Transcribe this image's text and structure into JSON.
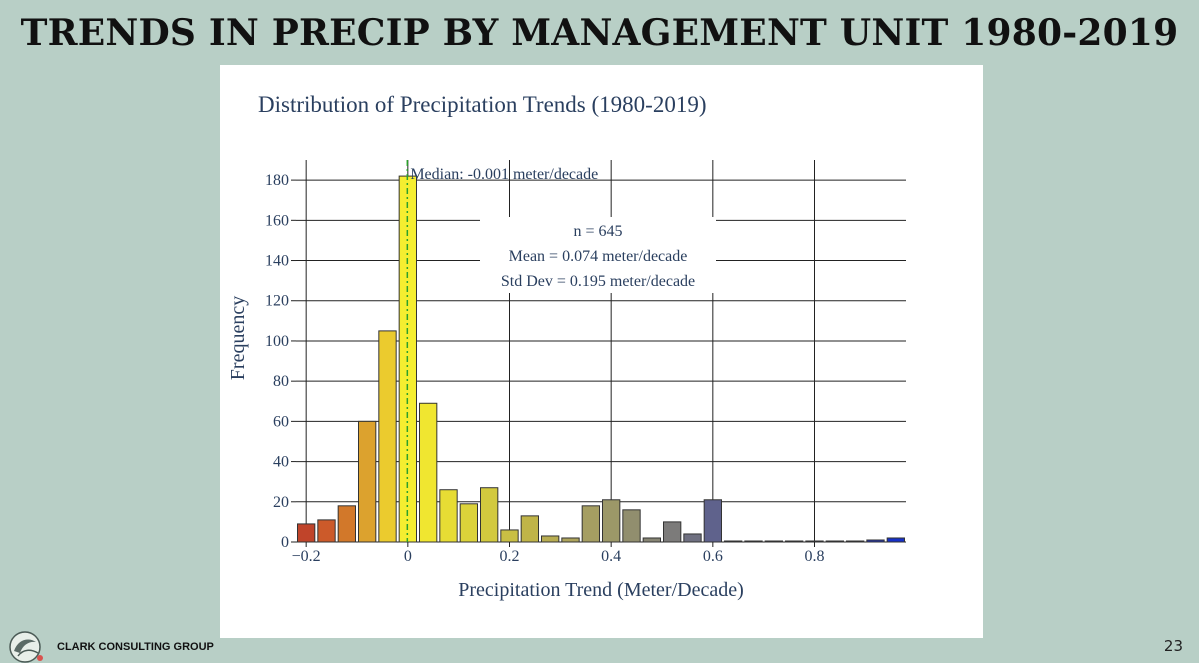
{
  "slide": {
    "title": "TRENDS IN PRECIP BY MANAGEMENT UNIT 1980-2019",
    "company": "CLARK CONSULTING GROUP",
    "page_number": "23"
  },
  "chart_data": {
    "type": "bar",
    "title": "Distribution of Precipitation Trends (1980-2019)",
    "xlabel": "Precipitation Trend (Meter/Decade)",
    "ylabel": "Frequency",
    "xlim": [
      -0.22,
      0.98
    ],
    "ylim": [
      0,
      190
    ],
    "bin_width": 0.04,
    "x_ticks": [
      -0.2,
      0,
      0.2,
      0.4,
      0.6,
      0.8
    ],
    "x_tick_labels": [
      "−0.2",
      "0",
      "0.2",
      "0.4",
      "0.6",
      "0.8"
    ],
    "y_ticks": [
      0,
      20,
      40,
      60,
      80,
      100,
      120,
      140,
      160,
      180
    ],
    "grid": true,
    "bins": [
      {
        "x": -0.2,
        "value": 9,
        "color": "#c0442a"
      },
      {
        "x": -0.16,
        "value": 11,
        "color": "#cc5a2a"
      },
      {
        "x": -0.12,
        "value": 18,
        "color": "#d2782a"
      },
      {
        "x": -0.08,
        "value": 60,
        "color": "#dca22e"
      },
      {
        "x": -0.04,
        "value": 105,
        "color": "#ebcb2e"
      },
      {
        "x": 0.0,
        "value": 182,
        "color": "#f5ee30"
      },
      {
        "x": 0.04,
        "value": 69,
        "color": "#f0e630"
      },
      {
        "x": 0.08,
        "value": 26,
        "color": "#e7dc34"
      },
      {
        "x": 0.12,
        "value": 19,
        "color": "#dcd33a"
      },
      {
        "x": 0.16,
        "value": 27,
        "color": "#d2c93e"
      },
      {
        "x": 0.2,
        "value": 6,
        "color": "#c9bf44"
      },
      {
        "x": 0.24,
        "value": 13,
        "color": "#c0b448"
      },
      {
        "x": 0.28,
        "value": 3,
        "color": "#b8ad52"
      },
      {
        "x": 0.32,
        "value": 2,
        "color": "#aea45c"
      },
      {
        "x": 0.36,
        "value": 18,
        "color": "#a59e62"
      },
      {
        "x": 0.4,
        "value": 21,
        "color": "#9c9868"
      },
      {
        "x": 0.44,
        "value": 16,
        "color": "#918e6e"
      },
      {
        "x": 0.48,
        "value": 2,
        "color": "#878574"
      },
      {
        "x": 0.52,
        "value": 10,
        "color": "#7c7b7a"
      },
      {
        "x": 0.56,
        "value": 4,
        "color": "#6f7081"
      },
      {
        "x": 0.6,
        "value": 21,
        "color": "#5f628c"
      },
      {
        "x": 0.64,
        "value": 0.5,
        "color": "#555a90"
      },
      {
        "x": 0.68,
        "value": 0.5,
        "color": "#4f5592"
      },
      {
        "x": 0.72,
        "value": 0.5,
        "color": "#484f96"
      },
      {
        "x": 0.76,
        "value": 0.5,
        "color": "#42499a"
      },
      {
        "x": 0.8,
        "value": 0.5,
        "color": "#3b429e"
      },
      {
        "x": 0.84,
        "value": 0.5,
        "color": "#343ca2"
      },
      {
        "x": 0.88,
        "value": 0.5,
        "color": "#2d36a8"
      },
      {
        "x": 0.92,
        "value": 1,
        "color": "#2233b0"
      },
      {
        "x": 0.96,
        "value": 2,
        "color": "#1630c8"
      }
    ],
    "median": {
      "value": -0.001,
      "label": "Median: -0.001 meter/decade",
      "color": "#2ca02c"
    },
    "stats": {
      "n_label": "n = 645",
      "mean_label": "Mean = 0.074 meter/decade",
      "std_label": "Std Dev = 0.195 meter/decade"
    }
  }
}
